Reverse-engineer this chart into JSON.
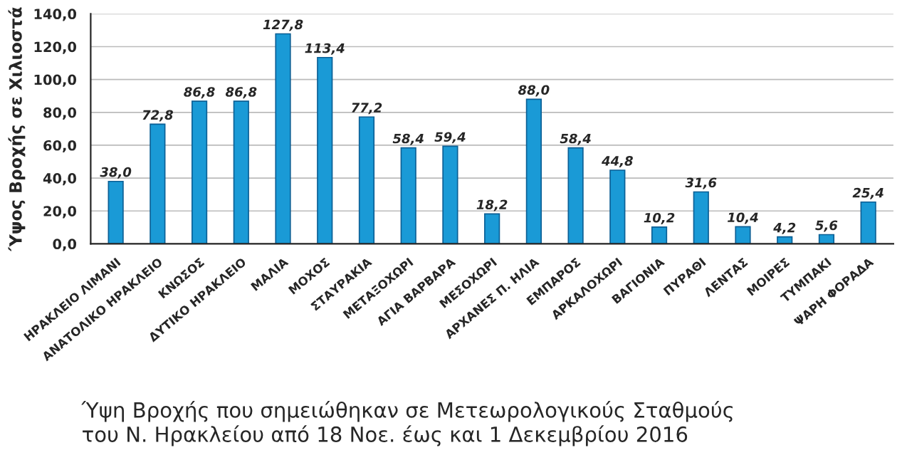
{
  "chart_data": {
    "type": "bar",
    "categories": [
      "ΗΡΑΚΛΕΙΟ ΛΙΜΑΝΙ",
      "ΑΝΑΤΟΛΙΚΟ ΗΡΑΚΛΕΙΟ",
      "ΚΝΩΣΟΣ",
      "ΔΥΤΙΚΟ ΗΡΑΚΛΕΙΟ",
      "ΜΑΛΙΑ",
      "ΜΟΧΟΣ",
      "ΣΤΑΥΡΑΚΙΑ",
      "ΜΕΤΑΞΟΧΩΡΙ",
      "ΑΓΙΑ ΒΑΡΒΑΡΑ",
      "ΜΕΣΟΧΩΡΙ",
      "ΑΡΧΑΝΕΣ Π. ΗΛΙΑ",
      "ΕΜΠΑΡΟΣ",
      "ΑΡΚΑΛΟΧΩΡΙ",
      "ΒΑΓΙΟΝΙΑ",
      "ΠΥΡΑΘΙ",
      "ΛΕΝΤΑΣ",
      "ΜΟΙΡΕΣ",
      "ΤΥΜΠΑΚΙ",
      "ΨΑΡΗ ΦΟΡΑΔΑ"
    ],
    "values": [
      38.0,
      72.8,
      86.8,
      86.8,
      127.8,
      113.4,
      77.2,
      58.4,
      59.4,
      18.2,
      88.0,
      58.4,
      44.8,
      10.2,
      31.6,
      10.4,
      4.2,
      5.6,
      25.4
    ],
    "value_labels": [
      "38,0",
      "72,8",
      "86,8",
      "86,8",
      "127,8",
      "113,4",
      "77,2",
      "58,4",
      "59,4",
      "18,2",
      "88,0",
      "58,4",
      "44,8",
      "10,2",
      "31,6",
      "10,4",
      "4,2",
      "5,6",
      "25,4"
    ],
    "color": "#1a9ad6",
    "ylabel": "Ύψος Βροχής σε Χιλιοστά",
    "ylim": [
      0,
      140
    ],
    "yticks": [
      {
        "value": 0,
        "label": "0,0"
      },
      {
        "value": 20,
        "label": "20,0"
      },
      {
        "value": 40,
        "label": "40,0"
      },
      {
        "value": 60,
        "label": "60,0"
      },
      {
        "value": 80,
        "label": "80,0"
      },
      {
        "value": 100,
        "label": "100,0"
      },
      {
        "value": 120,
        "label": "120,0"
      },
      {
        "value": 140,
        "label": "140,0"
      }
    ],
    "grid": "y",
    "annotations": [
      "Ύψη Βροχής που σημειώθηκαν σε Μετεωρολογικούς Σταθμούς\nτου Ν. Ηρακλείου από 18 Νοε. έως και 1 Δεκεμβρίου 2016"
    ]
  }
}
